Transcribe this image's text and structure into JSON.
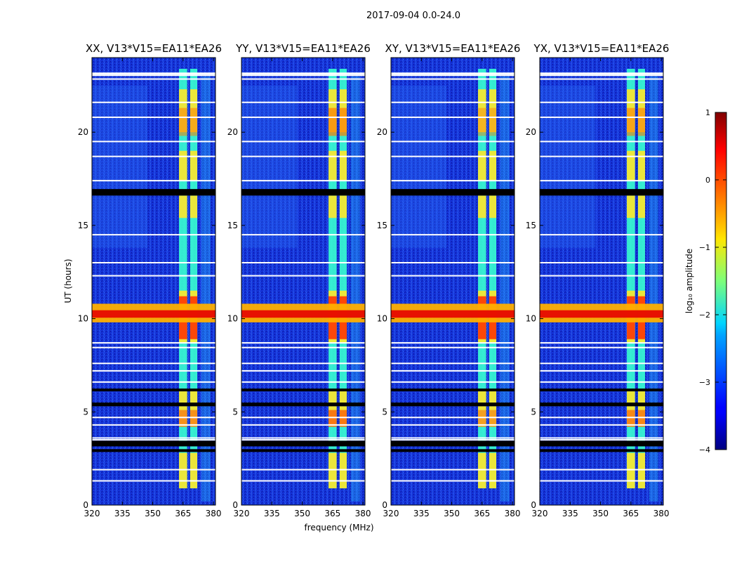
{
  "figure": {
    "suptitle": "2017-09-04 0.0-24.0"
  },
  "chart_data": {
    "type": "heatmap",
    "xlabel": "frequency (MHz)",
    "ylabel": "UT (hours)",
    "xlim": [
      320,
      381
    ],
    "ylim": [
      0,
      24
    ],
    "x_ticks": [
      320,
      335,
      350,
      365,
      380
    ],
    "x_tick_labels": [
      "320",
      "335",
      "350",
      "365",
      "380"
    ],
    "y_ticks": [
      0,
      5,
      10,
      15,
      20
    ],
    "y_tick_labels": [
      "0",
      "5",
      "10",
      "15",
      "20"
    ],
    "panels": [
      {
        "title": "XX, V13*V15=EA11*EA26",
        "rfi_band_level": 0.55
      },
      {
        "title": "YY, V13*V15=EA11*EA26",
        "rfi_band_level": 0.7
      },
      {
        "title": "XY, V13*V15=EA11*EA26",
        "rfi_band_level": 0.45
      },
      {
        "title": "YX, V13*V15=EA11*EA26",
        "rfi_band_level": 0.6
      }
    ],
    "features": {
      "strong_channels_mhz": [
        [
          363,
          367
        ],
        [
          368.5,
          372
        ]
      ],
      "broadband_event_ut": [
        9.8,
        10.8
      ],
      "flagged_black_rows_ut": [
        [
          16.6,
          16.95
        ],
        [
          3.15,
          3.45
        ],
        [
          2.85,
          3.0
        ],
        [
          6.1,
          6.25
        ],
        [
          5.3,
          5.5
        ]
      ],
      "flagged_white_rows_ut": [
        23.05,
        22.85,
        21.6,
        20.8,
        19.5,
        18.7,
        17.4,
        14.5,
        13.0,
        12.3,
        8.7,
        8.45,
        7.6,
        7.2,
        6.6,
        4.7,
        4.3,
        3.6,
        3.5,
        1.9,
        1.3
      ]
    },
    "colorbar": {
      "label": "log₁₀ amplitude",
      "range": [
        -4,
        1
      ],
      "ticks": [
        1,
        0,
        -1,
        -2,
        -3,
        -4
      ],
      "tick_labels": [
        "1",
        "0",
        "−1",
        "−2",
        "−3",
        "−4"
      ],
      "colormap": "jet"
    }
  }
}
